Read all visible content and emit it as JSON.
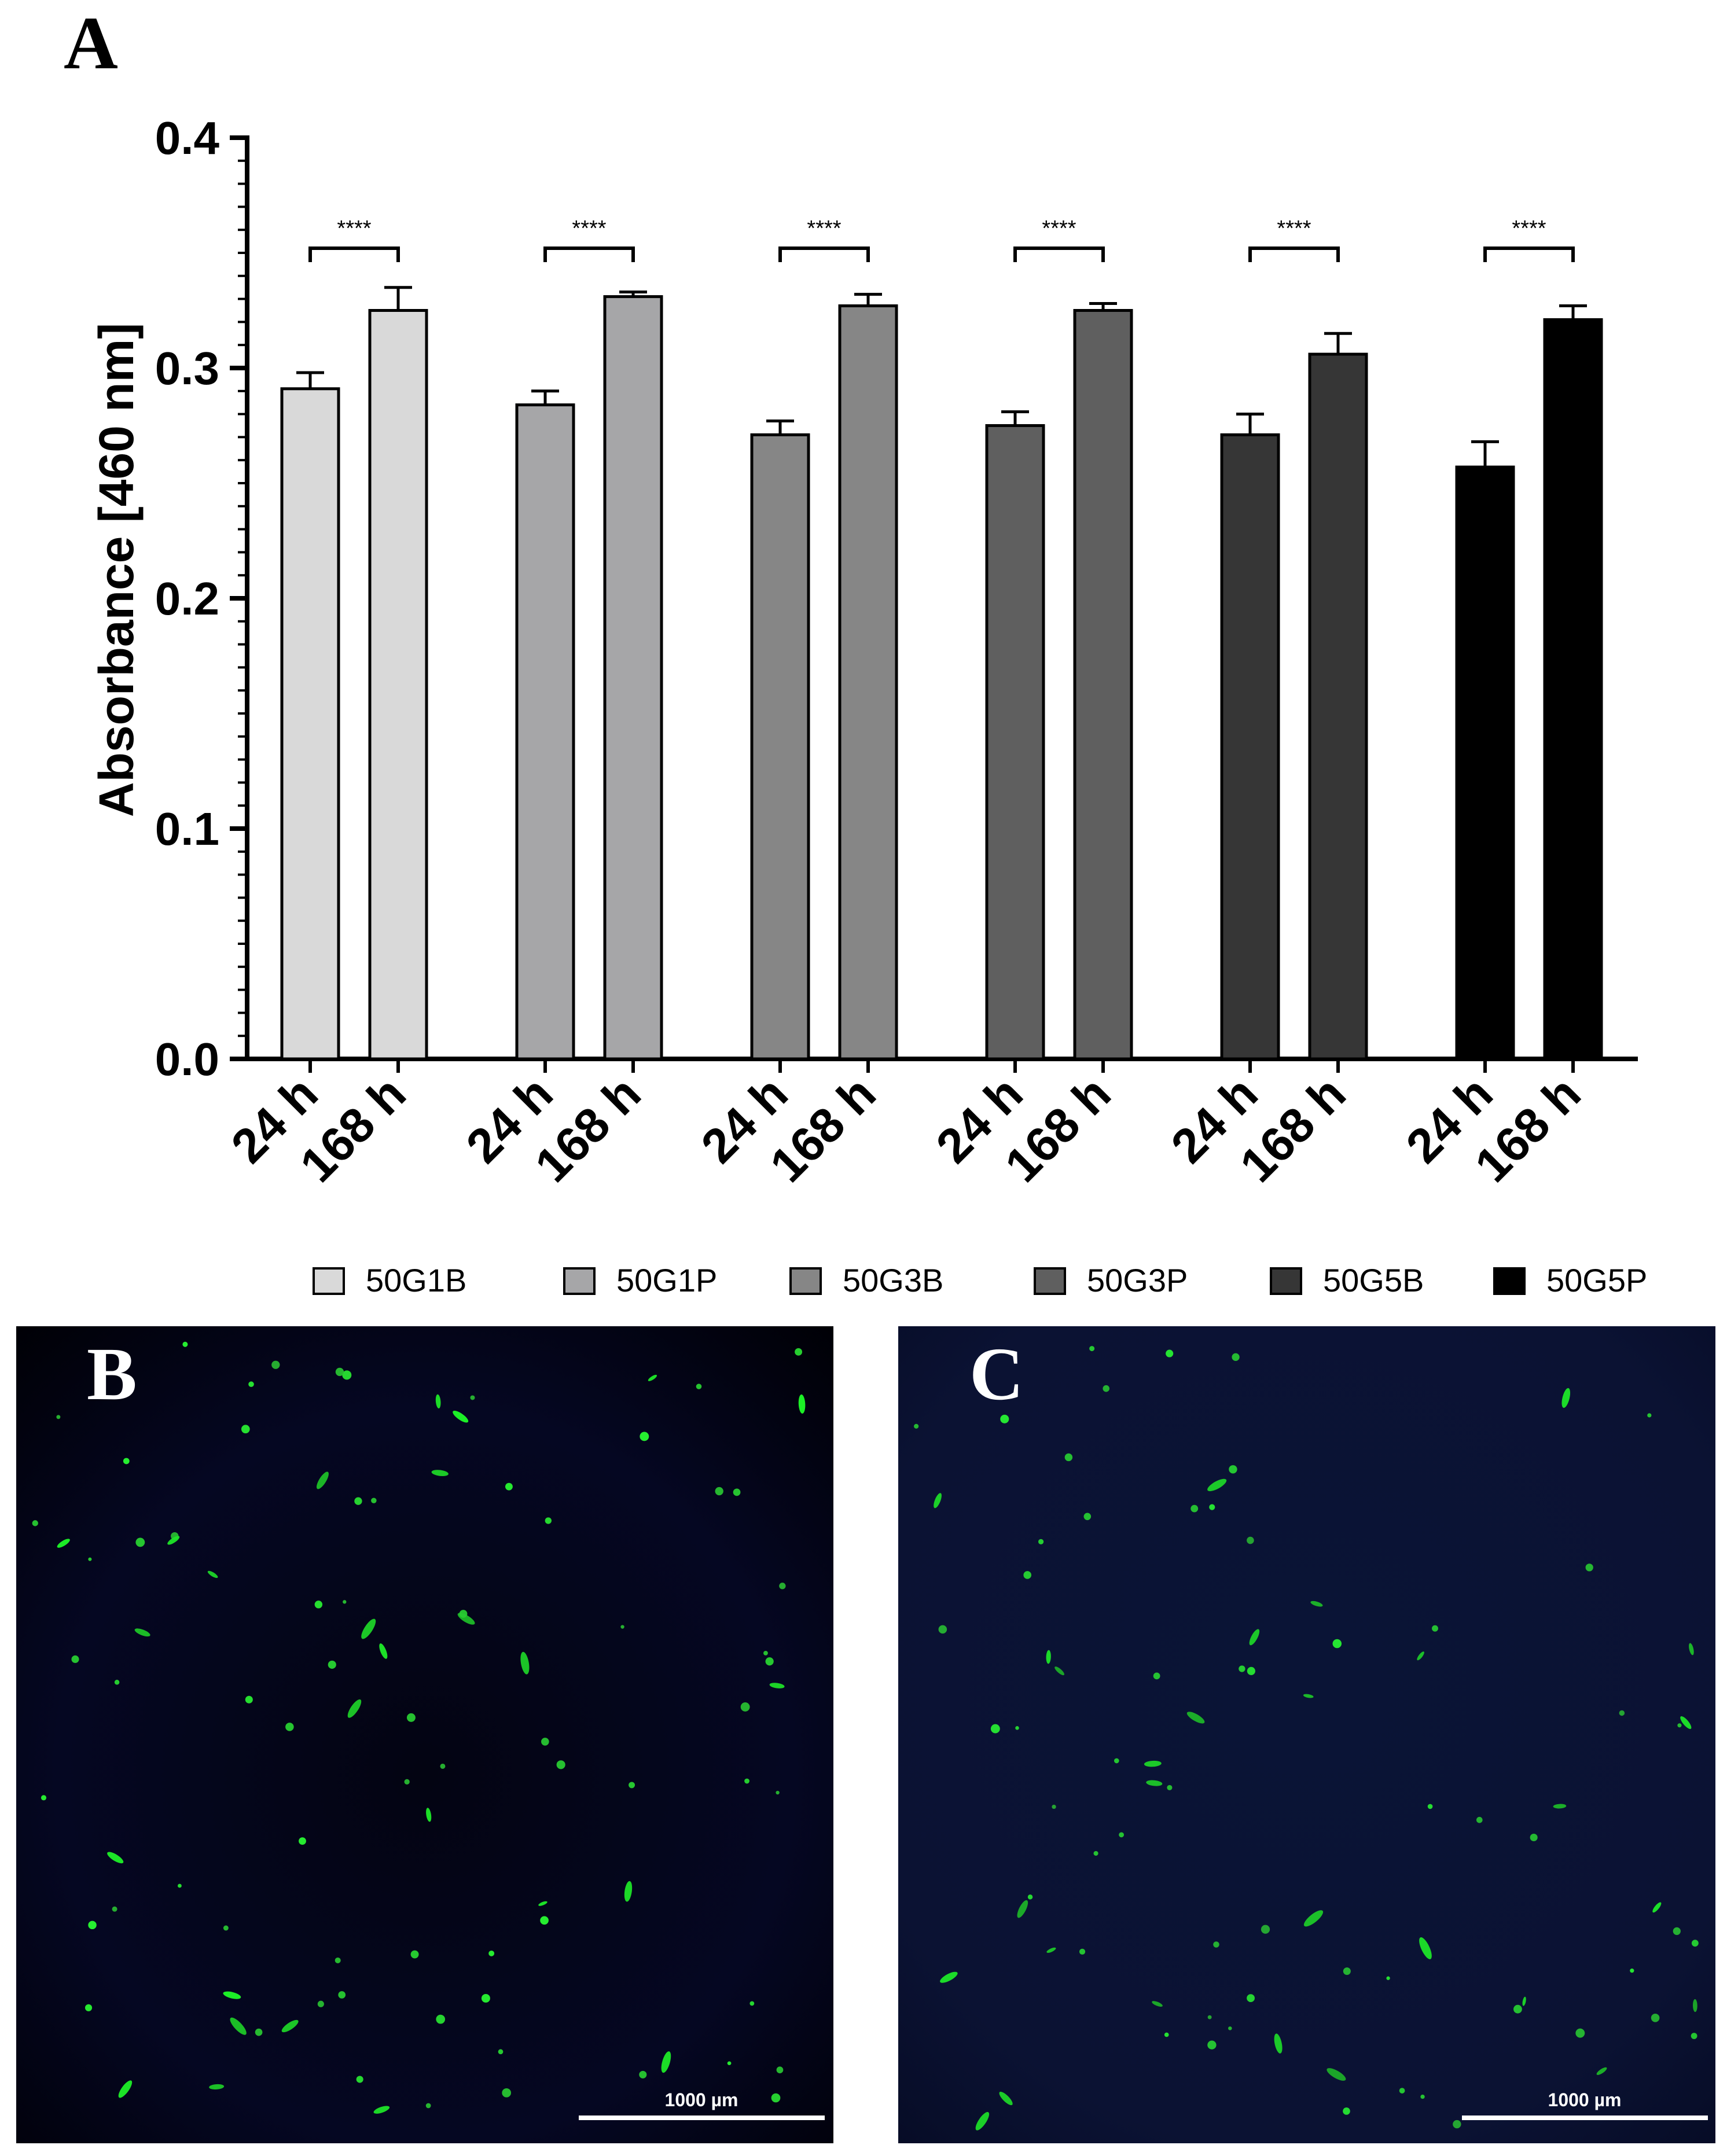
{
  "panels": {
    "a_label": "A",
    "b_label": "B",
    "c_label": "C"
  },
  "chart_data": {
    "type": "bar",
    "ylabel": "Absorbance [460 nm]",
    "xlabel": "",
    "ylim": [
      0,
      0.4
    ],
    "yticks": [
      "0.0",
      "0.1",
      "0.2",
      "0.3",
      "0.4"
    ],
    "ytick_values": [
      0,
      0.1,
      0.2,
      0.3,
      0.4
    ],
    "time_labels": [
      "24 h",
      "168 h"
    ],
    "significance": "****",
    "legend_position": "bottom",
    "groups": [
      {
        "name": "50G1B",
        "color": "#d9d9d9",
        "values": [
          0.291,
          0.325
        ],
        "errors": [
          0.007,
          0.01
        ]
      },
      {
        "name": "50G1P",
        "color": "#a6a6a8",
        "values": [
          0.284,
          0.331
        ],
        "errors": [
          0.006,
          0.002
        ]
      },
      {
        "name": "50G3B",
        "color": "#868686",
        "values": [
          0.271,
          0.327
        ],
        "errors": [
          0.006,
          0.005
        ]
      },
      {
        "name": "50G3P",
        "color": "#5f5f5f",
        "values": [
          0.275,
          0.325
        ],
        "errors": [
          0.006,
          0.003
        ]
      },
      {
        "name": "50G5B",
        "color": "#363636",
        "values": [
          0.271,
          0.306
        ],
        "errors": [
          0.009,
          0.009
        ]
      },
      {
        "name": "50G5P",
        "color": "#000000",
        "values": [
          0.257,
          0.321
        ],
        "errors": [
          0.011,
          0.006
        ]
      }
    ]
  },
  "micrographs": [
    {
      "panel": "B",
      "scale_label": "1000 µm"
    },
    {
      "panel": "C",
      "scale_label": "1000 µm"
    }
  ]
}
